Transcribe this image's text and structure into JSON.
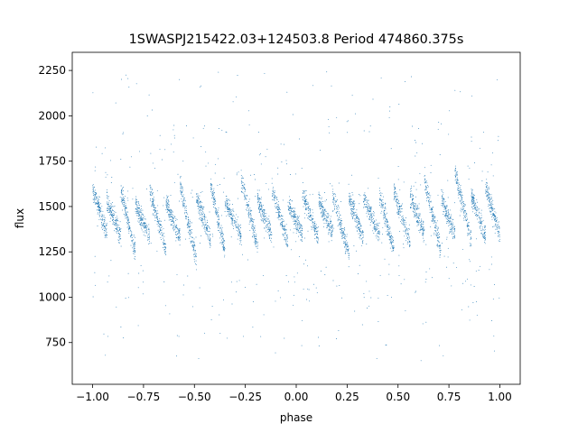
{
  "chart_data": {
    "type": "scatter",
    "title": "1SWASPJ215422.03+124503.8 Period 474860.375s",
    "xlabel": "phase",
    "ylabel": "flux",
    "xlim": [
      -1.1,
      1.1
    ],
    "ylim": [
      520,
      2350
    ],
    "xticks": [
      -1.0,
      -0.75,
      -0.5,
      -0.25,
      0.0,
      0.25,
      0.5,
      0.75,
      1.0
    ],
    "xtick_labels": [
      "−1.00",
      "−0.75",
      "−0.50",
      "−0.25",
      "0.00",
      "0.25",
      "0.50",
      "0.75",
      "1.00"
    ],
    "yticks": [
      750,
      1000,
      1250,
      1500,
      1750,
      2000,
      2250
    ],
    "ytick_labels": [
      "750",
      "1000",
      "1250",
      "1500",
      "1750",
      "2000",
      "2250"
    ],
    "grid": false,
    "legend": "none",
    "series_color": "#1f77b4",
    "x_range": [
      -1.0,
      1.0
    ],
    "median_flux": 1450,
    "flux_spread": 90,
    "flux_clip": [
      600,
      2270
    ],
    "segments": [
      [
        -1.0,
        -0.93,
        1600,
        1350
      ],
      [
        -0.93,
        -0.86,
        1530,
        1330
      ],
      [
        -0.86,
        -0.79,
        1580,
        1250
      ],
      [
        -0.79,
        -0.72,
        1520,
        1330
      ],
      [
        -0.72,
        -0.64,
        1590,
        1260
      ],
      [
        -0.64,
        -0.57,
        1520,
        1330
      ],
      [
        -0.57,
        -0.49,
        1620,
        1200
      ],
      [
        -0.49,
        -0.42,
        1550,
        1320
      ],
      [
        -0.42,
        -0.35,
        1620,
        1260
      ],
      [
        -0.35,
        -0.27,
        1530,
        1340
      ],
      [
        -0.27,
        -0.19,
        1650,
        1280
      ],
      [
        -0.19,
        -0.12,
        1540,
        1340
      ],
      [
        -0.12,
        -0.04,
        1600,
        1300
      ],
      [
        -0.04,
        0.03,
        1520,
        1350
      ],
      [
        0.03,
        0.11,
        1580,
        1320
      ],
      [
        0.11,
        0.18,
        1530,
        1360
      ],
      [
        0.18,
        0.26,
        1560,
        1230
      ],
      [
        0.26,
        0.33,
        1540,
        1330
      ],
      [
        0.33,
        0.41,
        1550,
        1340
      ],
      [
        0.41,
        0.48,
        1560,
        1260
      ],
      [
        0.48,
        0.56,
        1580,
        1300
      ],
      [
        0.56,
        0.63,
        1560,
        1340
      ],
      [
        0.63,
        0.71,
        1650,
        1260
      ],
      [
        0.71,
        0.78,
        1560,
        1340
      ],
      [
        0.78,
        0.86,
        1680,
        1320
      ],
      [
        0.86,
        0.93,
        1560,
        1340
      ],
      [
        0.93,
        1.0,
        1620,
        1340
      ]
    ]
  }
}
